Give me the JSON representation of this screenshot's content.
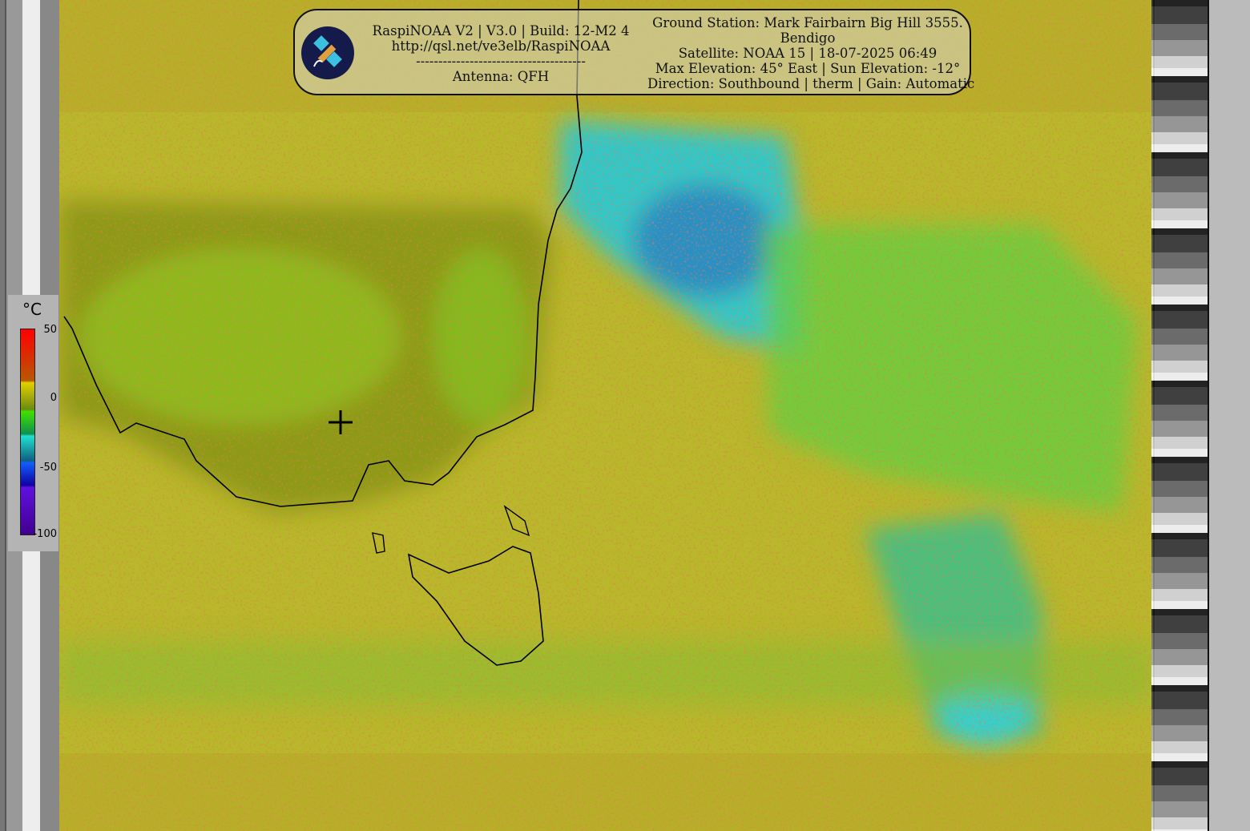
{
  "header": {
    "left": {
      "line1": "RaspiNOAA V2 | V3.0 | Build: 12-M2 4",
      "line2": "http://qsl.net/ve3elb/RaspiNOAA",
      "line3": "--------------------------------------",
      "line4": "Antenna: QFH"
    },
    "right": {
      "line1": "Ground Station: Mark Fairbairn Big Hill 3555.",
      "line2": "Bendigo",
      "line3": "Satellite: NOAA 15 | 18-07-2025 06:49",
      "line4": "Max Elevation: 45° East | Sun Elevation: -12°",
      "line5": "Direction: Southbound | therm | Gain: Automatic"
    },
    "logo_icon": "satellite-icon"
  },
  "legend": {
    "unit": "°C",
    "ticks": [
      "50",
      "0",
      "-50",
      "-100"
    ]
  },
  "colors": {
    "warm": "#c8c020",
    "land": "#8a9a10",
    "cloud_cold": "#20c8d0",
    "cloud_colder": "#1848c0"
  }
}
